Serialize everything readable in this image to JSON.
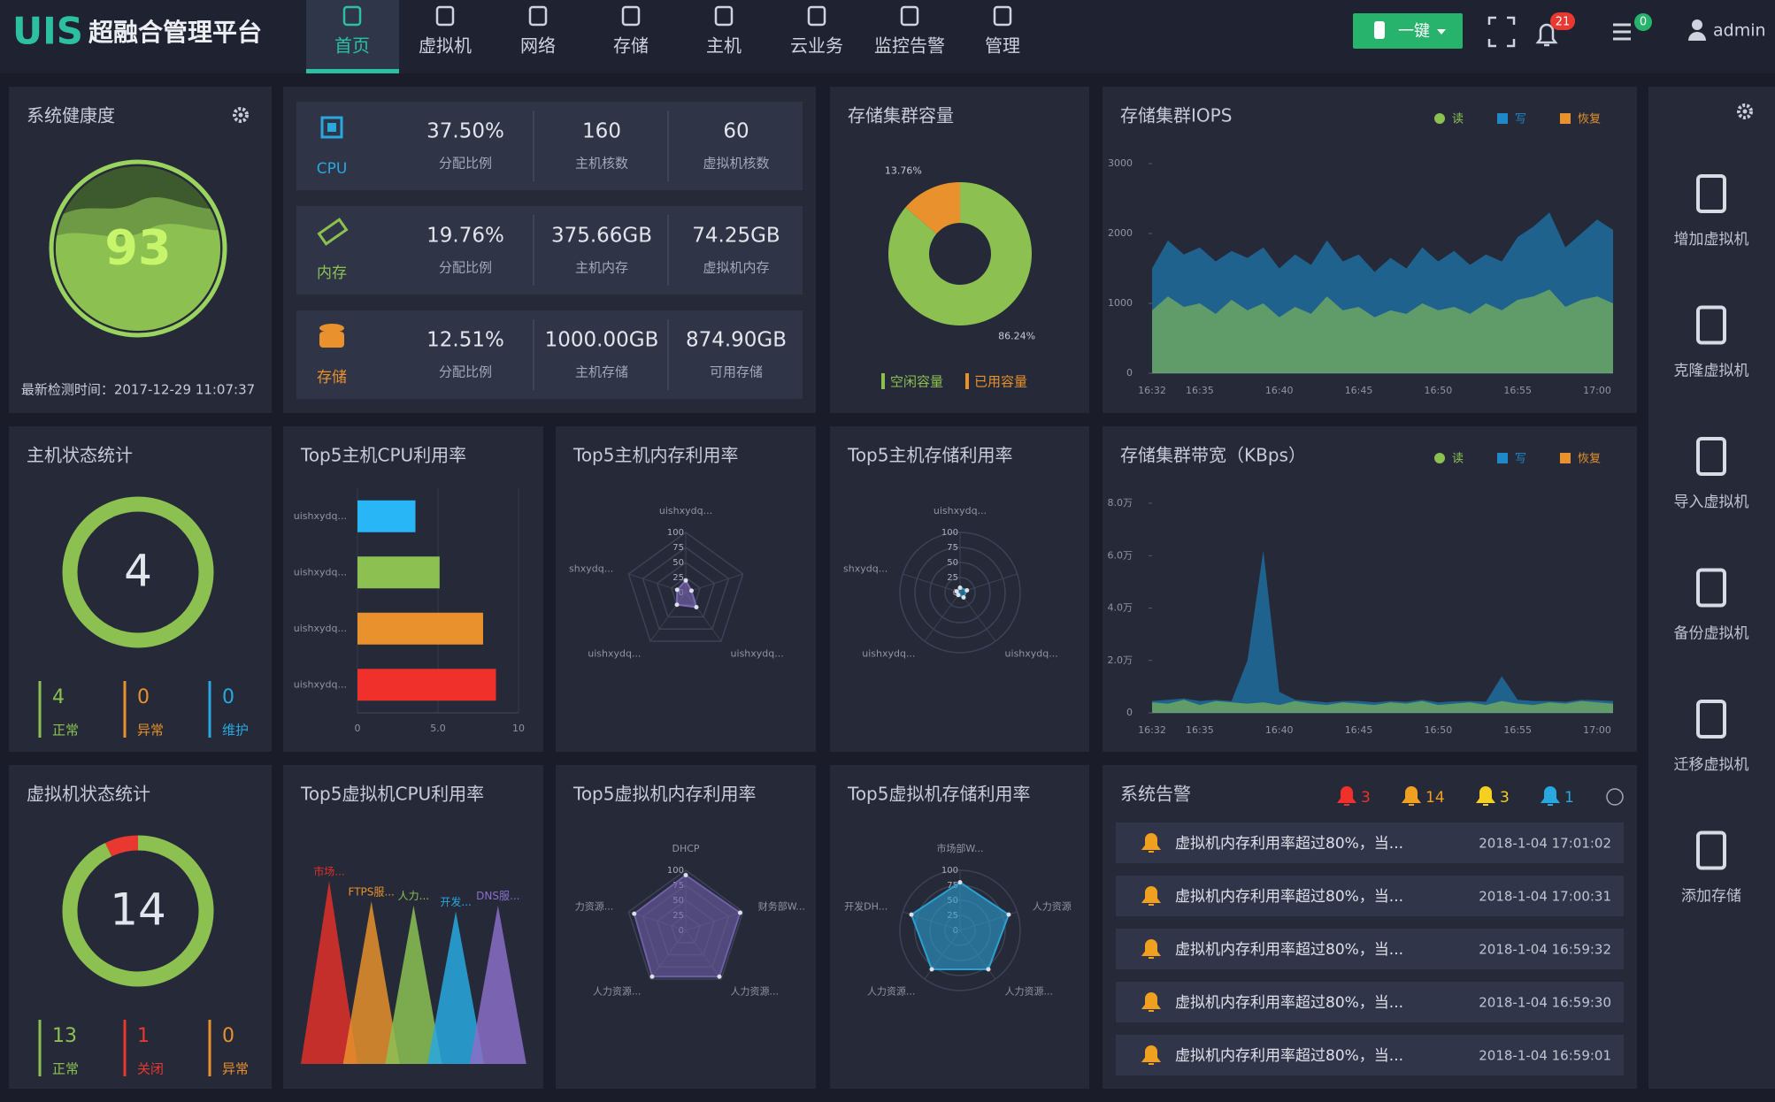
{
  "header": {
    "logo": "UIS",
    "title": "超融合管理平台",
    "nav": [
      "首页",
      "虚拟机",
      "网络",
      "存储",
      "主机",
      "云业务",
      "监控告警",
      "管理"
    ],
    "button": "一键",
    "alerts": "21",
    "messages": "0",
    "user": "admin"
  },
  "health": {
    "title": "系统健康度",
    "score": 93,
    "checked": "最新检测时间：2017-12-29 11:07:37"
  },
  "resources": [
    {
      "name": "CPU",
      "color": "#29a8e0",
      "cells": [
        {
          "value": "37.50%",
          "label": "分配比例"
        },
        {
          "value": 160,
          "label": "主机核数"
        },
        {
          "value": 60,
          "label": "虚拟机核数"
        }
      ]
    },
    {
      "name": "内存",
      "color": "#8cc152",
      "cells": [
        {
          "value": "19.76%",
          "label": "分配比例"
        },
        {
          "value": "375.66GB",
          "label": "主机内存"
        },
        {
          "value": "74.25GB",
          "label": "虚拟机内存"
        }
      ]
    },
    {
      "name": "存储",
      "color": "#e8912d",
      "cells": [
        {
          "value": "12.51%",
          "label": "分配比例"
        },
        {
          "value": "1000.00GB",
          "label": "主机存储"
        },
        {
          "value": "874.90GB",
          "label": "可用存储"
        }
      ]
    }
  ],
  "hosts": {
    "title": "主机状态统计",
    "total": 4,
    "stats": [
      {
        "value": 4,
        "label": "正常",
        "color": "#8cc152"
      },
      {
        "value": 0,
        "label": "异常",
        "color": "#e8912d"
      },
      {
        "value": 0,
        "label": "维护",
        "color": "#29a8e0"
      }
    ]
  },
  "vms": {
    "title": "虚拟机状态统计",
    "total": 14,
    "stats": [
      {
        "value": 13,
        "label": "正常",
        "color": "#8cc152"
      },
      {
        "value": 1,
        "label": "关闭",
        "color": "#e8382f"
      },
      {
        "value": 0,
        "label": "异常",
        "color": "#e8912d"
      }
    ]
  },
  "alarms": {
    "title": "系统告警",
    "levels": [
      {
        "count": 3,
        "color": "#f0302a"
      },
      {
        "count": 14,
        "color": "#f0a020"
      },
      {
        "count": 3,
        "color": "#f5d020"
      },
      {
        "count": 1,
        "color": "#29a8e0"
      }
    ],
    "items": [
      {
        "text": "虚拟机内存利用率超过80%，当...",
        "time": "2018-1-04 17:01:02"
      },
      {
        "text": "虚拟机内存利用率超过80%，当...",
        "time": "2018-1-04 17:00:31"
      },
      {
        "text": "虚拟机内存利用率超过80%，当...",
        "time": "2018-1-04 16:59:32"
      },
      {
        "text": "虚拟机内存利用率超过80%，当...",
        "time": "2018-1-04 16:59:30"
      },
      {
        "text": "虚拟机内存利用率超过80%，当...",
        "time": "2018-1-04 16:59:01"
      }
    ]
  },
  "sidebar": {
    "actions": [
      "增加虚拟机",
      "克隆虚拟机",
      "导入虚拟机",
      "备份虚拟机",
      "迁移虚拟机",
      "添加存储"
    ]
  },
  "chart_data": [
    {
      "type": "pie",
      "title": "存储集群容量",
      "categories": [
        "空闲容量",
        "已用容量"
      ],
      "values": [
        86.24,
        13.76
      ],
      "value_labels": [
        "86.24%",
        "13.76%"
      ],
      "colors": [
        "#8cc152",
        "#e8912d"
      ],
      "legend": "bottom"
    },
    {
      "type": "area",
      "title": "存储集群IOPS",
      "categories": [
        "16:32",
        null,
        null,
        "16:35",
        null,
        null,
        null,
        null,
        "16:40",
        null,
        null,
        null,
        null,
        "16:45",
        null,
        null,
        null,
        null,
        "16:50",
        null,
        null,
        null,
        null,
        "16:55",
        null,
        null,
        null,
        null,
        "17:00",
        null
      ],
      "series": [
        {
          "name": "读",
          "color": "#8cc152",
          "values": [
            900,
            1100,
            950,
            1000,
            850,
            1050,
            900,
            1000,
            800,
            950,
            850,
            1100,
            900,
            950,
            800,
            900,
            850,
            1000,
            900,
            950,
            850,
            1000,
            900,
            1050,
            1100,
            1200,
            950,
            1050,
            1100,
            1000
          ]
        },
        {
          "name": "写",
          "color": "#1e88c8",
          "values": [
            1500,
            1900,
            1700,
            1800,
            1600,
            1750,
            1650,
            1800,
            1500,
            1700,
            1550,
            1900,
            1600,
            1700,
            1450,
            1650,
            1500,
            1800,
            1600,
            1750,
            1550,
            1700,
            1600,
            1950,
            2100,
            2300,
            1800,
            2000,
            2200,
            2050
          ]
        },
        {
          "name": "恢复",
          "color": "#e8912d",
          "values": [
            0,
            0,
            0,
            0,
            0,
            0,
            0,
            0,
            0,
            0,
            0,
            0,
            0,
            0,
            0,
            0,
            0,
            0,
            0,
            0,
            0,
            0,
            0,
            0,
            0,
            0,
            0,
            0,
            0,
            0
          ]
        }
      ],
      "ylim": [
        0,
        3000
      ],
      "yticks": [
        0,
        1000,
        2000,
        3000
      ],
      "legend": "top-right"
    },
    {
      "type": "bar",
      "orientation": "horizontal",
      "title": "Top5主机CPU利用率",
      "categories": [
        "uishxydq...",
        "uishxydq...",
        "uishxydq...",
        "uishxydq..."
      ],
      "values": [
        3.6,
        5.1,
        7.8,
        8.6
      ],
      "colors": [
        "#29b6f6",
        "#8cc152",
        "#e8912d",
        "#f0302a"
      ],
      "xlim": [
        0,
        10
      ],
      "xticks": [
        0,
        {
          "value": 5,
          "label": "5.0"
        },
        10
      ],
      "grid": true
    },
    {
      "type": "radar",
      "shape": "polygon",
      "title": "Top5主机内存利用率",
      "indicators": [
        "uishxydq...",
        null,
        "uishxydq...",
        "uishxydq...",
        "shxydq..."
      ],
      "values": [
        20,
        10,
        30,
        25,
        15
      ],
      "rlim": [
        0,
        100
      ],
      "rticks": [
        0,
        25,
        50,
        75,
        100
      ],
      "color": "#7b68b5"
    },
    {
      "type": "radar",
      "shape": "circle",
      "title": "Top5主机存储利用率",
      "indicators": [
        "uishxydq...",
        null,
        "uishxydq...",
        "uishxydq...",
        "shxydq..."
      ],
      "values": [
        8,
        12,
        10,
        5,
        6
      ],
      "rlim": [
        0,
        100
      ],
      "rticks": [
        0,
        25,
        50,
        75,
        100
      ],
      "color": "#2b8fc0"
    },
    {
      "type": "area",
      "title": "存储集群带宽（KBps）",
      "categories": [
        "16:32",
        null,
        null,
        "16:35",
        null,
        null,
        null,
        null,
        "16:40",
        null,
        null,
        null,
        null,
        "16:45",
        null,
        null,
        null,
        null,
        "16:50",
        null,
        null,
        null,
        null,
        "16:55",
        null,
        null,
        null,
        null,
        "17:00",
        null
      ],
      "series": [
        {
          "name": "读",
          "color": "#8cc152",
          "values": [
            4000,
            3500,
            5000,
            3000,
            4500,
            4000,
            3500,
            4000,
            3000,
            4500,
            3500,
            3000,
            4000,
            3500,
            3000,
            4000,
            3500,
            4500,
            3000,
            3500,
            4000,
            3000,
            4500,
            3500,
            3000,
            4000,
            3500,
            4500,
            4000,
            3500
          ]
        },
        {
          "name": "写",
          "color": "#1e88c8",
          "values": [
            4500,
            5000,
            5500,
            4500,
            5000,
            4500,
            20000,
            62000,
            8000,
            5000,
            4500,
            4000,
            4500,
            4500,
            4000,
            4500,
            4200,
            5000,
            4000,
            4400,
            4500,
            4200,
            14000,
            5000,
            4500,
            4500,
            4200,
            5000,
            4800,
            4500
          ]
        },
        {
          "name": "恢复",
          "color": "#e8912d",
          "values": [
            0,
            0,
            0,
            0,
            0,
            0,
            0,
            0,
            0,
            0,
            0,
            0,
            0,
            0,
            0,
            0,
            0,
            0,
            0,
            0,
            0,
            0,
            0,
            0,
            0,
            0,
            0,
            0,
            0,
            0
          ]
        }
      ],
      "ylim": [
        0,
        80000
      ],
      "yticks": [
        0,
        {
          "value": 20000,
          "label": "2.0万"
        },
        {
          "value": 40000,
          "label": "4.0万"
        },
        {
          "value": 60000,
          "label": "6.0万"
        },
        {
          "value": 80000,
          "label": "8.0万"
        }
      ],
      "legend": "top-right"
    },
    {
      "type": "peaks",
      "title": "Top5虚拟机CPU利用率",
      "categories": [
        "市场...",
        "FTPS服...",
        "人力...",
        "开发...",
        "DNS服..."
      ],
      "values": [
        90,
        80,
        78,
        75,
        78
      ],
      "colors": [
        "#e0302a",
        "#e8912d",
        "#8cc152",
        "#29a8e0",
        "#8a6fc8"
      ]
    },
    {
      "type": "radar",
      "shape": "polygon",
      "title": "Top5虚拟机内存利用率",
      "indicators": [
        "DHCP",
        "财务部W...",
        "人力资源...",
        "人力资源...",
        "力资源..."
      ],
      "values": [
        92,
        95,
        95,
        95,
        90
      ],
      "rlim": [
        0,
        100
      ],
      "rticks": [
        0,
        25,
        50,
        75,
        100
      ],
      "color": "#6f5fa8"
    },
    {
      "type": "radar",
      "shape": "circle",
      "title": "Top5虚拟机存储利用率",
      "indicators": [
        "市场部W...",
        "人力资源",
        "人力资源...",
        "人力资源...",
        "开发DH..."
      ],
      "values": [
        80,
        85,
        80,
        80,
        85
      ],
      "rlim": [
        0,
        100
      ],
      "rticks": [
        0,
        25,
        50,
        75,
        100
      ],
      "color": "#2b9fd0"
    }
  ]
}
